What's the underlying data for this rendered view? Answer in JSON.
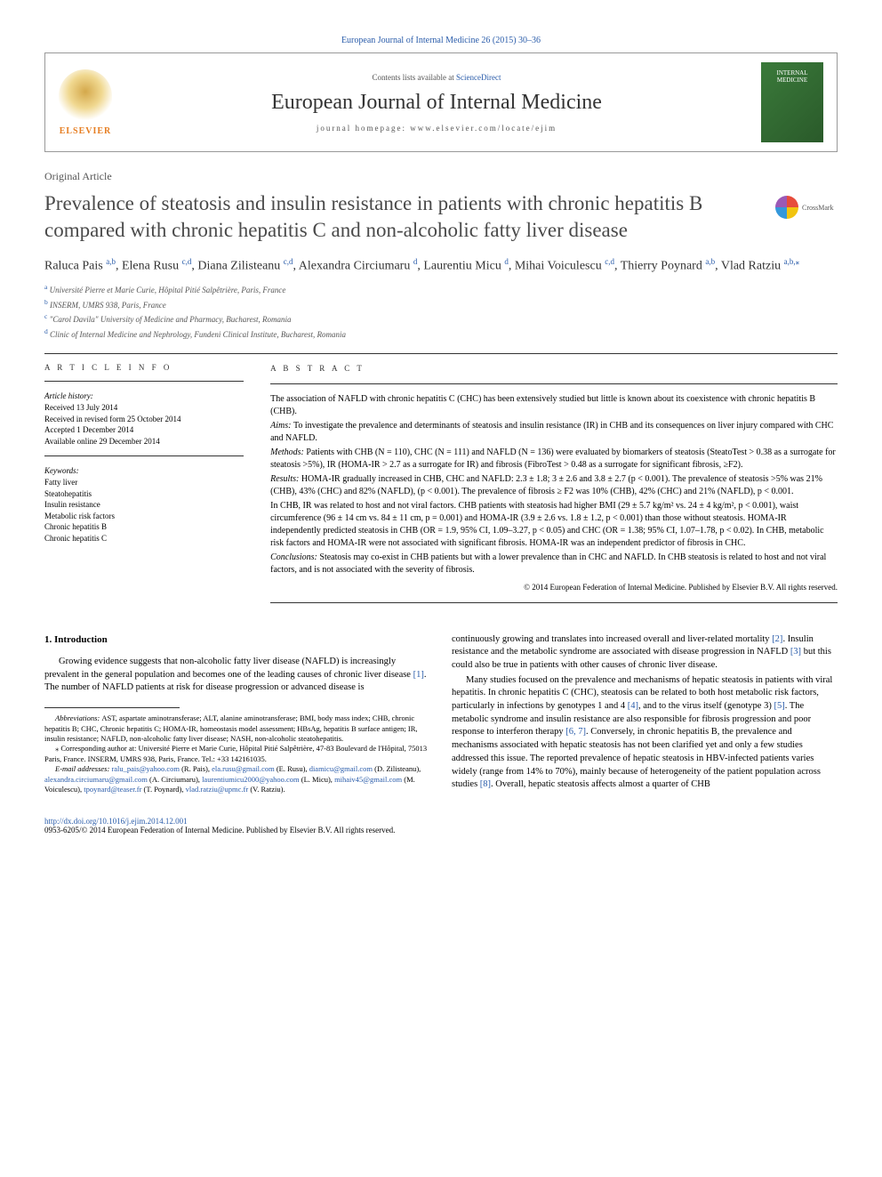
{
  "topLink": "European Journal of Internal Medicine 26 (2015) 30–36",
  "header": {
    "contentsPrefix": "Contents lists available at ",
    "contentsLink": "ScienceDirect",
    "journal": "European Journal of Internal Medicine",
    "homepagePrefix": "journal homepage: ",
    "homepage": "www.elsevier.com/locate/ejim",
    "publisher": "ELSEVIER",
    "coverLabel1": "INTERNAL",
    "coverLabel2": "MEDICINE"
  },
  "articleType": "Original Article",
  "title": "Prevalence of steatosis and insulin resistance in patients with chronic hepatitis B compared with chronic hepatitis C and non-alcoholic fatty liver disease",
  "crossmark": "CrossMark",
  "authors": [
    {
      "name": "Raluca Pais ",
      "aff": "a,b"
    },
    {
      "name": ", Elena Rusu ",
      "aff": "c,d"
    },
    {
      "name": ", Diana Zilisteanu ",
      "aff": "c,d"
    },
    {
      "name": ", Alexandra Circiumaru ",
      "aff": "d"
    },
    {
      "name": ", Laurentiu Micu ",
      "aff": "d"
    },
    {
      "name": ", Mihai Voiculescu ",
      "aff": "c,d"
    },
    {
      "name": ", Thierry Poynard ",
      "aff": "a,b"
    },
    {
      "name": ", Vlad Ratziu ",
      "aff": "a,b,",
      "star": true
    }
  ],
  "affiliations": [
    {
      "sup": "a",
      "text": " Université Pierre et Marie Curie, Hôpital Pitié Salpêtrière, Paris, France"
    },
    {
      "sup": "b",
      "text": " INSERM, UMRS 938, Paris, France"
    },
    {
      "sup": "c",
      "text": " \"Carol Davila\" University of Medicine and Pharmacy, Bucharest, Romania"
    },
    {
      "sup": "d",
      "text": " Clinic of Internal Medicine and Nephrology, Fundeni Clinical Institute, Bucharest, Romania"
    }
  ],
  "info": {
    "heading": "A R T I C L E   I N F O",
    "historyLabel": "Article history:",
    "history": [
      "Received 13 July 2014",
      "Received in revised form 25 October 2014",
      "Accepted 1 December 2014",
      "Available online 29 December 2014"
    ],
    "keywordsLabel": "Keywords:",
    "keywords": [
      "Fatty liver",
      "Steatohepatitis",
      "Insulin resistance",
      "Metabolic risk factors",
      "Chronic hepatitis B",
      "Chronic hepatitis C"
    ]
  },
  "abstract": {
    "heading": "A B S T R A C T",
    "p1": "The association of NAFLD with chronic hepatitis C (CHC) has been extensively studied but little is known about its coexistence with chronic hepatitis B (CHB).",
    "aimsLabel": "Aims: ",
    "aims": "To investigate the prevalence and determinants of steatosis and insulin resistance (IR) in CHB and its consequences on liver injury compared with CHC and NAFLD.",
    "methodsLabel": "Methods: ",
    "methods": "Patients with CHB (N = 110), CHC (N = 111) and NAFLD (N = 136) were evaluated by biomarkers of steatosis (SteatoTest > 0.38 as a surrogate for steatosis >5%), IR (HOMA-IR > 2.7 as a surrogate for IR) and fibrosis (FibroTest > 0.48 as a surrogate for significant fibrosis, ≥F2).",
    "resultsLabel": "Results: ",
    "results1": "HOMA-IR gradually increased in CHB, CHC and NAFLD: 2.3 ± 1.8; 3 ± 2.6 and 3.8 ± 2.7 (p < 0.001). The prevalence of steatosis >5% was 21% (CHB), 43% (CHC) and 82% (NAFLD), (p < 0.001). The prevalence of fibrosis ≥ F2 was 10% (CHB), 42% (CHC) and 21% (NAFLD), p < 0.001.",
    "results2": "In CHB, IR was related to host and not viral factors. CHB patients with steatosis had higher BMI (29 ± 5.7 kg/m² vs. 24 ± 4 kg/m², p < 0.001), waist circumference (96 ± 14 cm vs. 84 ± 11 cm, p = 0.001) and HOMA-IR (3.9 ± 2.6 vs. 1.8 ± 1.2, p < 0.001) than those without steatosis. HOMA-IR independently predicted steatosis in CHB (OR = 1.9, 95% CI, 1.09–3.27, p < 0.05) and CHC (OR = 1.38; 95% CI, 1.07–1.78, p < 0.02). In CHB, metabolic risk factors and HOMA-IR were not associated with significant fibrosis. HOMA-IR was an independent predictor of fibrosis in CHC.",
    "conclLabel": "Conclusions: ",
    "concl": "Steatosis may co-exist in CHB patients but with a lower prevalence than in CHC and NAFLD. In CHB steatosis is related to host and not viral factors, and is not associated with the severity of fibrosis.",
    "copyright": "© 2014 European Federation of Internal Medicine. Published by Elsevier B.V. All rights reserved."
  },
  "section1": {
    "heading": "1. Introduction",
    "p1a": "Growing evidence suggests that non-alcoholic fatty liver disease (NAFLD) is increasingly prevalent in the general population and becomes one of the leading causes of chronic liver disease ",
    "p1ref1": "[1]",
    "p1b": ". The number of NAFLD patients at risk for disease progression or advanced disease is ",
    "p1c": "continuously growing and translates into increased overall and liver-related mortality ",
    "p1ref2": "[2]",
    "p1d": ". Insulin resistance and the metabolic syndrome are associated with disease progression in NAFLD ",
    "p1ref3": "[3]",
    "p1e": " but this could also be true in patients with other causes of chronic liver disease.",
    "p2a": "Many studies focused on the prevalence and mechanisms of hepatic steatosis in patients with viral hepatitis. In chronic hepatitis C (CHC), steatosis can be related to both host metabolic risk factors, particularly in infections by genotypes 1 and 4 ",
    "p2ref4": "[4]",
    "p2b": ", and to the virus itself (genotype 3) ",
    "p2ref5": "[5]",
    "p2c": ". The metabolic syndrome and insulin resistance are also responsible for fibrosis progression and poor response to interferon therapy ",
    "p2ref67": "[6, 7]",
    "p2d": ". Conversely, in chronic hepatitis B, the prevalence and mechanisms associated with hepatic steatosis has not been clarified yet and only a few studies addressed this issue. The reported prevalence of hepatic steatosis in HBV-infected patients varies widely (range from 14% to 70%), mainly because of heterogeneity of the patient population across studies ",
    "p2ref8": "[8]",
    "p2e": ". Overall, hepatic steatosis affects almost a quarter of CHB"
  },
  "footnotes": {
    "abbrLabel": "Abbreviations: ",
    "abbr": "AST, aspartate aminotransferase; ALT, alanine aminotransferase; BMI, body mass index; CHB, chronic hepatitis B; CHC, Chronic hepatitis C; HOMA-IR, homeostasis model assessment; HBsAg, hepatitis B surface antigen; IR, insulin resistance; NAFLD, non-alcoholic fatty liver disease; NASH, non-alcoholic steatohepatitis.",
    "corrLabel": "⁎ Corresponding author at: ",
    "corr": "Université Pierre et Marie Curie, Hôpital Pitié Salpêtrière, 47-83 Boulevard de l'Hôpital, 75013 Paris, France. INSERM, UMRS 938, Paris, France. Tel.: +33 142161035.",
    "emailLabel": "E-mail addresses: ",
    "emails": [
      {
        "email": "ralu_pais@yahoo.com",
        "name": " (R. Pais), "
      },
      {
        "email": "ela.rusu@gmail.com",
        "name": " (E. Rusu), "
      },
      {
        "email": "diamicu@gmail.com",
        "name": " (D. Zilisteanu), "
      },
      {
        "email": "alexandra.circiumaru@gmail.com",
        "name": " (A. Circiumaru), "
      },
      {
        "email": "laurentiumicu2000@yahoo.com",
        "name": " (L. Micu), "
      },
      {
        "email": "mihaiv45@gmail.com",
        "name": " (M. Voiculescu), "
      },
      {
        "email": "tpoynard@teaser.fr",
        "name": " (T. Poynard), "
      },
      {
        "email": "vlad.ratziu@upmc.fr",
        "name": " (V. Ratziu)."
      }
    ]
  },
  "footer": {
    "doi": "http://dx.doi.org/10.1016/j.ejim.2014.12.001",
    "issn": "0953-6205/© 2014 European Federation of Internal Medicine. Published by Elsevier B.V. All rights reserved."
  }
}
